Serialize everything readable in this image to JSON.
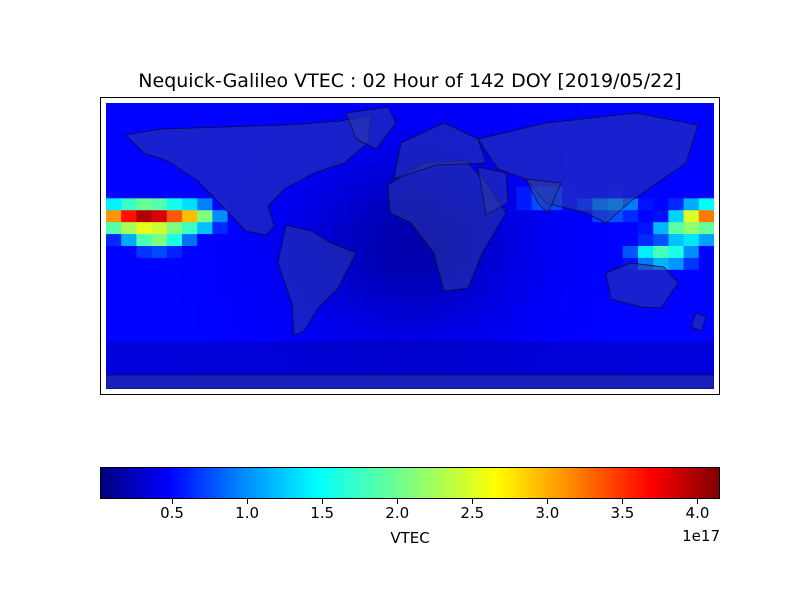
{
  "chart_data": {
    "type": "heatmap",
    "title": "Nequick-Galileo VTEC : 02 Hour of 142 DOY [2019/05/22]",
    "projection": "equirectangular world map",
    "x_range_deg": [
      -180,
      180
    ],
    "y_range_deg": [
      -90,
      90
    ],
    "colormap": "jet",
    "colorbar": {
      "label": "VTEC",
      "orientation": "horizontal",
      "placement": "bottom",
      "range": [
        0.02,
        4.15
      ],
      "ticks": [
        0.5,
        1.0,
        1.5,
        2.0,
        2.5,
        3.0,
        3.5,
        4.0
      ],
      "tick_labels": [
        "0.5",
        "1.0",
        "1.5",
        "2.0",
        "2.5",
        "3.0",
        "3.5",
        "4.0"
      ],
      "scale_label": "1e17"
    },
    "features": [
      {
        "lon": -159,
        "lat": 18,
        "value": 4.0
      },
      {
        "lon": -148,
        "lat": 18,
        "value": 3.8
      },
      {
        "lon": -168,
        "lat": 18,
        "value": 3.4
      },
      {
        "lon": -135,
        "lat": 18,
        "value": 3.0
      },
      {
        "lon": 178,
        "lat": 18,
        "value": 3.2
      },
      {
        "lon": -150,
        "lat": 6,
        "value": 2.2
      },
      {
        "lon": 165,
        "lat": 10,
        "value": 2.2
      },
      {
        "lon": 150,
        "lat": -5,
        "value": 1.9
      },
      {
        "lon": 120,
        "lat": 25,
        "value": 1.3
      },
      {
        "lon": 80,
        "lat": 30,
        "value": 1.0
      }
    ],
    "background_value": 0.55,
    "low_value_region": {
      "lon": 0,
      "lat": 0,
      "value": 0.2
    }
  }
}
